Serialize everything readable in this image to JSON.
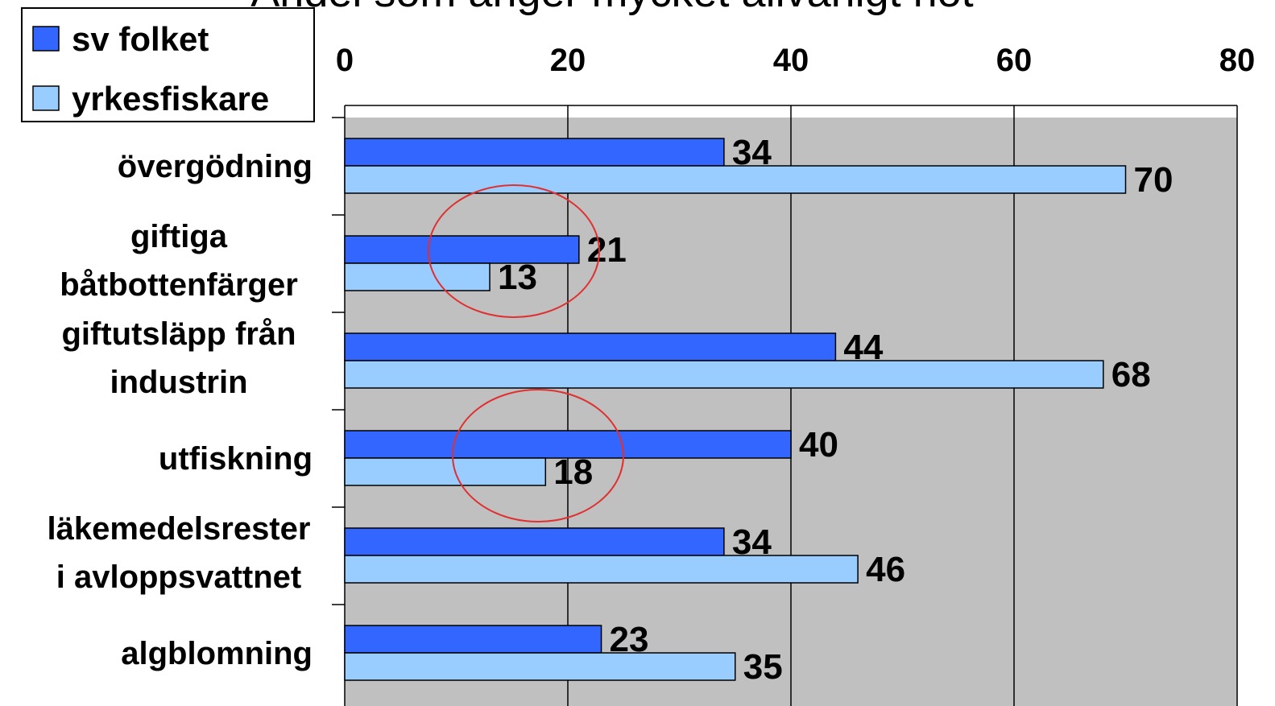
{
  "chart_data": {
    "type": "bar",
    "orientation": "horizontal",
    "title": "Andel som anger mycket allvarligt hot",
    "xlabel": "",
    "ylabel": "",
    "xlim": [
      0,
      80
    ],
    "x_ticks": [
      0,
      20,
      40,
      60,
      80
    ],
    "x_axis_position": "top",
    "grid": true,
    "legend_position": "top-left",
    "categories": [
      [
        "övergödning"
      ],
      [
        "giftiga",
        "båtbottenfärger"
      ],
      [
        "giftutsläpp från",
        "industrin"
      ],
      [
        "utfiskning"
      ],
      [
        "läkemedelsrester",
        "i avloppsvattnet"
      ],
      [
        "algblomning"
      ]
    ],
    "series": [
      {
        "name": "sv folket",
        "color": "#3366ff",
        "values": [
          34,
          21,
          44,
          40,
          34,
          23
        ]
      },
      {
        "name": "yrkesfiskare",
        "color": "#99ccff",
        "values": [
          70,
          13,
          68,
          18,
          46,
          35
        ]
      }
    ],
    "annotations": [
      {
        "type": "ellipse",
        "category_index": 1,
        "color": "#e03030"
      },
      {
        "type": "ellipse",
        "category_index": 3,
        "color": "#e03030"
      }
    ],
    "plot_background": "#c0c0c0"
  }
}
